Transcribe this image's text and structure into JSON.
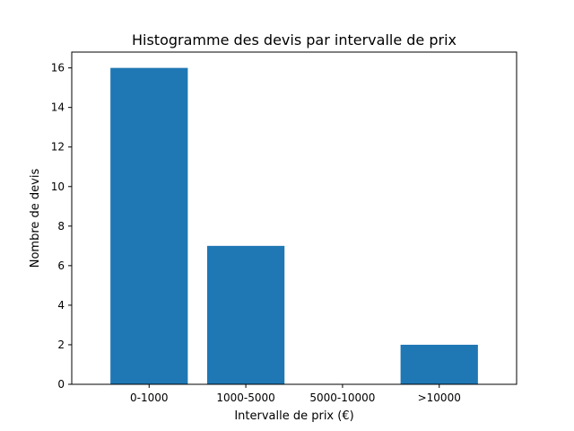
{
  "chart_data": {
    "type": "bar",
    "title": "Histogramme des devis par intervalle de prix",
    "xlabel": "Intervalle de prix (€)",
    "ylabel": "Nombre de devis",
    "categories": [
      "0-1000",
      "1000-5000",
      "5000-10000",
      ">10000"
    ],
    "values": [
      16,
      7,
      0,
      2
    ],
    "ylim": [
      0,
      16.8
    ],
    "yticks": [
      0,
      2,
      4,
      6,
      8,
      10,
      12,
      14,
      16
    ],
    "grid": false,
    "bar_color": "#1f77b4"
  }
}
